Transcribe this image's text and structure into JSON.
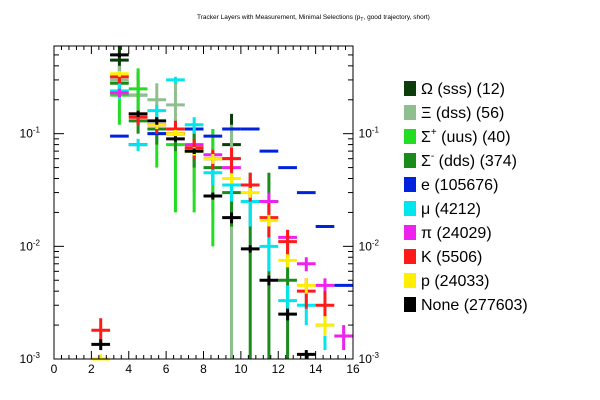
{
  "chart_data": {
    "type": "scatter",
    "title": "Tracker Layers with Measurement, Minimal Selections (p_T, good trajectory, short)",
    "title_main": "Tracker Layers with Measurement, Minimal Selections (p",
    "title_sub": "T",
    "title_tail": ", good trajectory, short)",
    "xlim": [
      0,
      16
    ],
    "ylim": [
      0.001,
      0.6
    ],
    "yscale": "log",
    "x_ticks": [
      "0",
      "2",
      "4",
      "6",
      "8",
      "10",
      "12",
      "14",
      "16"
    ],
    "y_ticks": [
      {
        "value": 0.1,
        "base": "10",
        "exp": "-1"
      },
      {
        "value": 0.01,
        "base": "10",
        "exp": "-2"
      },
      {
        "value": 0.001,
        "base": "10",
        "exp": "-3"
      }
    ],
    "legend_position": "right",
    "series": [
      {
        "name": "Ω (sss) (12)",
        "sym": "Ω",
        "sup": "",
        "rest": " (sss) (12)",
        "color": "#0a3d0a",
        "points": [
          {
            "x": 3.5,
            "y": 0.45,
            "lo": 0.3,
            "hi": 0.62
          },
          {
            "x": 4.5,
            "y": 0.22,
            "lo": 0.12,
            "hi": 0.35
          },
          {
            "x": 9.5,
            "y": 0.08,
            "lo": 0.0005,
            "hi": 0.15
          }
        ]
      },
      {
        "name": "Ξ (dss) (56)",
        "sym": "Ξ",
        "sup": "",
        "rest": " (dss) (56)",
        "color": "#8fbf8f",
        "points": [
          {
            "x": 3.5,
            "y": 0.3,
            "lo": 0.22,
            "hi": 0.4
          },
          {
            "x": 4.5,
            "y": 0.22,
            "lo": 0.15,
            "hi": 0.3
          },
          {
            "x": 5.5,
            "y": 0.2,
            "lo": 0.12,
            "hi": 0.28
          },
          {
            "x": 6.5,
            "y": 0.18,
            "lo": 0.08,
            "hi": 0.3
          },
          {
            "x": 7.5,
            "y": 0.07,
            "lo": 0.03,
            "hi": 0.12
          },
          {
            "x": 8.5,
            "y": 0.06,
            "lo": 0.02,
            "hi": 0.11
          },
          {
            "x": 9.5,
            "y": 0.06,
            "lo": 0.0005,
            "hi": 0.12
          }
        ]
      },
      {
        "name": "Σ+ (uus) (40)",
        "sym": "Σ",
        "sup": "+",
        "rest": " (uus) (40)",
        "color": "#22dd22",
        "points": [
          {
            "x": 3.5,
            "y": 0.22,
            "lo": 0.12,
            "hi": 0.3
          },
          {
            "x": 4.5,
            "y": 0.25,
            "lo": 0.16,
            "hi": 0.38
          },
          {
            "x": 5.5,
            "y": 0.1,
            "lo": 0.05,
            "hi": 0.16
          },
          {
            "x": 6.5,
            "y": 0.08,
            "lo": 0.02,
            "hi": 0.12
          },
          {
            "x": 7.5,
            "y": 0.07,
            "lo": 0.02,
            "hi": 0.11
          },
          {
            "x": 8.5,
            "y": 0.06,
            "lo": 0.01,
            "hi": 0.11
          }
        ]
      },
      {
        "name": "Σ- (dds) (374)",
        "sym": "Σ",
        "sup": "-",
        "rest": " (dds) (374)",
        "color": "#1a8a1a",
        "points": [
          {
            "x": 3.5,
            "y": 0.28,
            "lo": 0.22,
            "hi": 0.32
          },
          {
            "x": 4.5,
            "y": 0.13,
            "lo": 0.1,
            "hi": 0.16
          },
          {
            "x": 5.5,
            "y": 0.11,
            "lo": 0.08,
            "hi": 0.14
          },
          {
            "x": 6.5,
            "y": 0.1,
            "lo": 0.07,
            "hi": 0.13
          },
          {
            "x": 7.5,
            "y": 0.07,
            "lo": 0.05,
            "hi": 0.1
          },
          {
            "x": 8.5,
            "y": 0.05,
            "lo": 0.035,
            "hi": 0.07
          },
          {
            "x": 9.5,
            "y": 0.03,
            "lo": 0.015,
            "hi": 0.05
          },
          {
            "x": 10.5,
            "y": 0.025,
            "lo": 0.0005,
            "hi": 0.045
          },
          {
            "x": 11.5,
            "y": 0.025,
            "lo": 0.0005,
            "hi": 0.045
          },
          {
            "x": 12.5,
            "y": 0.005,
            "lo": 0.0005,
            "hi": 0.01
          }
        ]
      },
      {
        "name": "e (105676)",
        "sym": "e",
        "sup": "",
        "rest": " (105676)",
        "color": "#0022dd",
        "points": [
          {
            "x": 3.5,
            "y": 0.095
          },
          {
            "x": 4.5,
            "y": 0.08
          },
          {
            "x": 5.5,
            "y": 0.1
          },
          {
            "x": 6.5,
            "y": 0.1
          },
          {
            "x": 7.5,
            "y": 0.11
          },
          {
            "x": 8.5,
            "y": 0.095
          },
          {
            "x": 9.5,
            "y": 0.11
          },
          {
            "x": 10.5,
            "y": 0.11
          },
          {
            "x": 11.5,
            "y": 0.07
          },
          {
            "x": 12.5,
            "y": 0.05
          },
          {
            "x": 13.5,
            "y": 0.03
          },
          {
            "x": 14.5,
            "y": 0.015
          },
          {
            "x": 15.5,
            "y": 0.0045
          }
        ]
      },
      {
        "name": "μ (4212)",
        "sym": "μ",
        "sup": "",
        "rest": " (4212)",
        "color": "#00e5ee",
        "points": [
          {
            "x": 3.5,
            "y": 0.24,
            "lo": 0.2,
            "hi": 0.28
          },
          {
            "x": 4.5,
            "y": 0.08,
            "lo": 0.07,
            "hi": 0.09
          },
          {
            "x": 5.5,
            "y": 0.16,
            "lo": 0.14,
            "hi": 0.18
          },
          {
            "x": 6.5,
            "y": 0.3,
            "lo": 0.28,
            "hi": 0.32
          },
          {
            "x": 7.5,
            "y": 0.12,
            "lo": 0.1,
            "hi": 0.14
          },
          {
            "x": 8.5,
            "y": 0.045,
            "lo": 0.035,
            "hi": 0.055
          },
          {
            "x": 9.5,
            "y": 0.035,
            "lo": 0.025,
            "hi": 0.045
          },
          {
            "x": 10.5,
            "y": 0.025,
            "lo": 0.015,
            "hi": 0.035
          },
          {
            "x": 11.5,
            "y": 0.01,
            "lo": 0.006,
            "hi": 0.014
          },
          {
            "x": 12.5,
            "y": 0.0033,
            "lo": 0.0022,
            "hi": 0.0045
          },
          {
            "x": 13.5,
            "y": 0.003,
            "lo": 0.002,
            "hi": 0.004
          },
          {
            "x": 14.5,
            "y": 0.002,
            "lo": 0.0012,
            "hi": 0.003
          }
        ]
      },
      {
        "name": "π (24029)",
        "sym": "π",
        "sup": "",
        "rest": " (24029)",
        "color": "#ee22ee",
        "points": [
          {
            "x": 3.5,
            "y": 0.23,
            "lo": 0.21,
            "hi": 0.25
          },
          {
            "x": 4.5,
            "y": 0.15,
            "lo": 0.14,
            "hi": 0.16
          },
          {
            "x": 5.5,
            "y": 0.12,
            "lo": 0.11,
            "hi": 0.13
          },
          {
            "x": 6.5,
            "y": 0.1,
            "lo": 0.09,
            "hi": 0.11
          },
          {
            "x": 7.5,
            "y": 0.08,
            "lo": 0.075,
            "hi": 0.085
          },
          {
            "x": 8.5,
            "y": 0.065,
            "lo": 0.06,
            "hi": 0.07
          },
          {
            "x": 9.5,
            "y": 0.05,
            "lo": 0.045,
            "hi": 0.055
          },
          {
            "x": 10.5,
            "y": 0.035,
            "lo": 0.03,
            "hi": 0.04
          },
          {
            "x": 11.5,
            "y": 0.025,
            "lo": 0.02,
            "hi": 0.03
          },
          {
            "x": 12.5,
            "y": 0.012,
            "lo": 0.01,
            "hi": 0.014
          },
          {
            "x": 13.5,
            "y": 0.007,
            "lo": 0.006,
            "hi": 0.008
          },
          {
            "x": 14.5,
            "y": 0.0045,
            "lo": 0.0038,
            "hi": 0.0052
          },
          {
            "x": 15.5,
            "y": 0.0016,
            "lo": 0.0012,
            "hi": 0.002
          }
        ]
      },
      {
        "name": "K (5506)",
        "sym": "K",
        "sup": "",
        "rest": " (5506)",
        "color": "#ff1a1a",
        "points": [
          {
            "x": 2.5,
            "y": 0.0018,
            "lo": 0.0014,
            "hi": 0.0023
          },
          {
            "x": 3.5,
            "y": 0.32,
            "lo": 0.28,
            "hi": 0.36
          },
          {
            "x": 4.5,
            "y": 0.14,
            "lo": 0.12,
            "hi": 0.16
          },
          {
            "x": 5.5,
            "y": 0.12,
            "lo": 0.1,
            "hi": 0.14
          },
          {
            "x": 6.5,
            "y": 0.11,
            "lo": 0.09,
            "hi": 0.13
          },
          {
            "x": 7.5,
            "y": 0.075,
            "lo": 0.06,
            "hi": 0.09
          },
          {
            "x": 8.5,
            "y": 0.06,
            "lo": 0.048,
            "hi": 0.072
          },
          {
            "x": 9.5,
            "y": 0.06,
            "lo": 0.045,
            "hi": 0.075
          },
          {
            "x": 10.5,
            "y": 0.035,
            "lo": 0.025,
            "hi": 0.045
          },
          {
            "x": 11.5,
            "y": 0.018,
            "lo": 0.012,
            "hi": 0.024
          },
          {
            "x": 12.5,
            "y": 0.011,
            "lo": 0.008,
            "hi": 0.014
          },
          {
            "x": 13.5,
            "y": 0.004,
            "lo": 0.0028,
            "hi": 0.0052
          },
          {
            "x": 14.5,
            "y": 0.003,
            "lo": 0.002,
            "hi": 0.004
          }
        ]
      },
      {
        "name": "p (24033)",
        "sym": "p",
        "sup": "",
        "rest": " (24033)",
        "color": "#ffee00",
        "points": [
          {
            "x": 2.5,
            "y": 0.001,
            "lo": 0.0009,
            "hi": 0.0011
          },
          {
            "x": 3.5,
            "y": 0.34,
            "lo": 0.32,
            "hi": 0.36
          },
          {
            "x": 4.5,
            "y": 0.15,
            "lo": 0.14,
            "hi": 0.16
          },
          {
            "x": 5.5,
            "y": 0.12,
            "lo": 0.11,
            "hi": 0.13
          },
          {
            "x": 6.5,
            "y": 0.1,
            "lo": 0.092,
            "hi": 0.108
          },
          {
            "x": 7.5,
            "y": 0.07,
            "lo": 0.064,
            "hi": 0.076
          },
          {
            "x": 8.5,
            "y": 0.06,
            "lo": 0.054,
            "hi": 0.066
          },
          {
            "x": 9.5,
            "y": 0.04,
            "lo": 0.036,
            "hi": 0.044
          },
          {
            "x": 10.5,
            "y": 0.03,
            "lo": 0.027,
            "hi": 0.033
          },
          {
            "x": 11.5,
            "y": 0.017,
            "lo": 0.015,
            "hi": 0.019
          },
          {
            "x": 12.5,
            "y": 0.0075,
            "lo": 0.0065,
            "hi": 0.0085
          },
          {
            "x": 13.5,
            "y": 0.0045,
            "lo": 0.0038,
            "hi": 0.0052
          },
          {
            "x": 14.5,
            "y": 0.002,
            "lo": 0.0016,
            "hi": 0.0024
          }
        ]
      },
      {
        "name": "None (277603)",
        "sym": "None",
        "sup": "",
        "rest": " (277603)",
        "color": "#000000",
        "points": [
          {
            "x": 2.5,
            "y": 0.00135,
            "lo": 0.0012,
            "hi": 0.0015
          },
          {
            "x": 3.5,
            "y": 0.5,
            "lo": 0.48,
            "hi": 0.52
          },
          {
            "x": 4.5,
            "y": 0.15,
            "lo": 0.14,
            "hi": 0.16
          },
          {
            "x": 5.5,
            "y": 0.13,
            "lo": 0.12,
            "hi": 0.14
          },
          {
            "x": 6.5,
            "y": 0.09,
            "lo": 0.085,
            "hi": 0.095
          },
          {
            "x": 7.5,
            "y": 0.07,
            "lo": 0.066,
            "hi": 0.074
          },
          {
            "x": 8.5,
            "y": 0.028,
            "lo": 0.026,
            "hi": 0.03
          },
          {
            "x": 9.5,
            "y": 0.018,
            "lo": 0.016,
            "hi": 0.02
          },
          {
            "x": 10.5,
            "y": 0.0095,
            "lo": 0.0088,
            "hi": 0.0102
          },
          {
            "x": 11.5,
            "y": 0.005,
            "lo": 0.0045,
            "hi": 0.0055
          },
          {
            "x": 12.5,
            "y": 0.0025,
            "lo": 0.0022,
            "hi": 0.0028
          },
          {
            "x": 13.5,
            "y": 0.0011,
            "lo": 0.001,
            "hi": 0.0012
          }
        ]
      }
    ]
  }
}
